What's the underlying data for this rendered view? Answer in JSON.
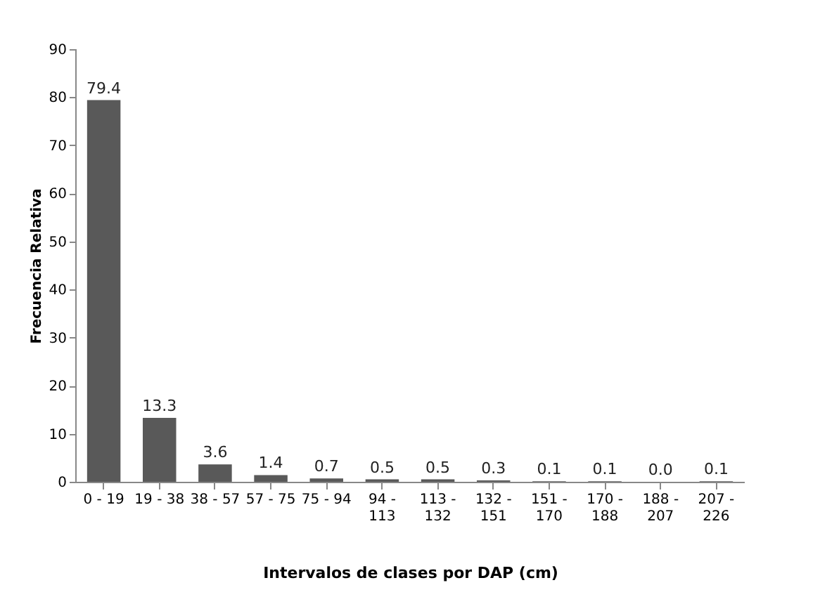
{
  "chart_data": {
    "type": "bar",
    "xlabel": "Intervalos de clases por DAP (cm)",
    "ylabel": "Frecuencia Relativa",
    "categories": [
      "0 - 19",
      "19 - 38",
      "38 - 57",
      "57 - 75",
      "75 - 94",
      "94 - 113",
      "113 - 132",
      "132 - 151",
      "151 - 170",
      "170 - 188",
      "188 - 207",
      "207 - 226"
    ],
    "values": [
      79.4,
      13.3,
      3.6,
      1.4,
      0.7,
      0.5,
      0.5,
      0.3,
      0.1,
      0.1,
      0.0,
      0.1
    ],
    "color": "#595959",
    "ylim": [
      0,
      90
    ],
    "yticks": [
      0,
      10,
      20,
      30,
      40,
      50,
      60,
      70,
      80,
      90
    ],
    "grid": false,
    "value_labels": [
      "79.4",
      "13.3",
      "3.6",
      "1.4",
      "0.7",
      "0.5",
      "0.5",
      "0.3",
      "0.1",
      "0.1",
      "0.0",
      "0.1"
    ]
  }
}
